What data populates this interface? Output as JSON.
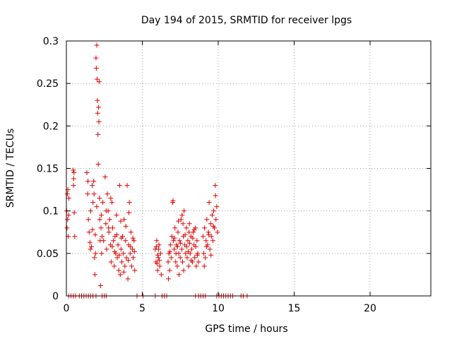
{
  "chart_data": {
    "type": "scatter",
    "title": "Day 194 of 2015, SRMTID for receiver lpgs",
    "xlabel": "GPS time / hours",
    "ylabel": "SRMTID / TECUs",
    "xlim": [
      0,
      24
    ],
    "ylim": [
      0,
      0.3
    ],
    "xticks": [
      0,
      5,
      10,
      15,
      20
    ],
    "yticks": [
      0,
      0.05,
      0.1,
      0.15,
      0.2,
      0.25,
      0.3
    ],
    "xtick_labels": [
      "0",
      "5",
      "10",
      "15",
      "20"
    ],
    "ytick_labels": [
      "0",
      "0.05",
      "0.1",
      "0.15",
      "0.2",
      "0.25",
      "0.3"
    ],
    "grid": true,
    "marker": "plus",
    "color": "#e00000",
    "series": [
      {
        "values": [
          [
            0.02,
            0.1
          ],
          [
            0.04,
            0.08
          ],
          [
            0.06,
            0.12
          ],
          [
            0.08,
            0.09
          ],
          [
            0.1,
            0.125
          ],
          [
            0.12,
            0.07
          ],
          [
            0.14,
            0.095
          ],
          [
            0.16,
            0.115
          ],
          [
            0.45,
            0.148
          ],
          [
            0.47,
            0.13
          ],
          [
            0.5,
            0.145
          ],
          [
            0.52,
            0.098
          ],
          [
            0.55,
            0.07
          ],
          [
            0.48,
            0.138
          ],
          [
            1.35,
            0.145
          ],
          [
            1.4,
            0.12
          ],
          [
            1.45,
            0.09
          ],
          [
            1.5,
            0.075
          ],
          [
            1.55,
            0.063
          ],
          [
            1.6,
            0.1
          ],
          [
            1.65,
            0.058
          ],
          [
            1.7,
            0.13
          ],
          [
            1.75,
            0.11
          ],
          [
            1.8,
            0.135
          ],
          [
            1.85,
            0.045
          ],
          [
            1.9,
            0.072
          ],
          [
            1.95,
            0.28
          ],
          [
            1.97,
            0.268
          ],
          [
            2.0,
            0.295
          ],
          [
            2.02,
            0.255
          ],
          [
            2.04,
            0.23
          ],
          [
            2.06,
            0.215
          ],
          [
            2.08,
            0.19
          ],
          [
            2.1,
            0.155
          ],
          [
            2.12,
            0.222
          ],
          [
            2.14,
            0.205
          ],
          [
            2.16,
            0.252
          ],
          [
            1.92,
            0.05
          ],
          [
            1.88,
            0.025
          ],
          [
            2.18,
            0.115
          ],
          [
            2.2,
            0.09
          ],
          [
            2.22,
            0.065
          ],
          [
            2.25,
            0.012
          ],
          [
            2.28,
            0.08
          ],
          [
            2.3,
            0.095
          ],
          [
            2.32,
            0.05
          ],
          [
            2.35,
            0.07
          ],
          [
            2.4,
            0.11
          ],
          [
            2.45,
            0.065
          ],
          [
            1.42,
            0.135
          ],
          [
            1.58,
            0.055
          ],
          [
            1.72,
            0.078
          ],
          [
            1.82,
            0.12
          ],
          [
            2.0,
            0.105
          ],
          [
            2.55,
            0.14
          ],
          [
            2.6,
            0.085
          ],
          [
            2.65,
            0.055
          ],
          [
            2.7,
            0.12
          ],
          [
            2.75,
            0.1
          ],
          [
            2.8,
            0.075
          ],
          [
            2.85,
            0.09
          ],
          [
            2.9,
            0.06
          ],
          [
            2.95,
            0.04
          ],
          [
            3.0,
            0.11
          ],
          [
            3.05,
            0.08
          ],
          [
            3.1,
            0.065
          ],
          [
            3.15,
            0.035
          ],
          [
            3.2,
            0.07
          ],
          [
            3.25,
            0.05
          ],
          [
            3.3,
            0.095
          ],
          [
            3.35,
            0.045
          ],
          [
            3.4,
            0.06
          ],
          [
            3.45,
            0.03
          ],
          [
            3.5,
            0.13
          ],
          [
            3.55,
            0.025
          ],
          [
            3.6,
            0.055
          ],
          [
            3.65,
            0.04
          ],
          [
            3.7,
            0.07
          ],
          [
            3.75,
            0.05
          ],
          [
            3.8,
            0.09
          ],
          [
            3.85,
            0.035
          ],
          [
            3.9,
            0.065
          ],
          [
            3.95,
            0.045
          ],
          [
            4.0,
            0.13
          ],
          [
            4.05,
            0.02
          ],
          [
            4.1,
            0.06
          ],
          [
            4.15,
            0.11
          ],
          [
            4.2,
            0.05
          ],
          [
            4.25,
            0.075
          ],
          [
            4.3,
            0.035
          ],
          [
            4.35,
            0.055
          ],
          [
            4.4,
            0.045
          ],
          [
            4.45,
            0.065
          ],
          [
            4.5,
            0.03
          ],
          [
            2.62,
            0.1
          ],
          [
            2.78,
            0.08
          ],
          [
            2.92,
            0.115
          ],
          [
            3.02,
            0.058
          ],
          [
            3.18,
            0.052
          ],
          [
            3.32,
            0.072
          ],
          [
            3.48,
            0.048
          ],
          [
            3.62,
            0.068
          ],
          [
            3.78,
            0.028
          ],
          [
            3.92,
            0.082
          ],
          [
            4.08,
            0.042
          ],
          [
            4.22,
            0.058
          ],
          [
            4.38,
            0.068
          ],
          [
            4.48,
            0.052
          ],
          [
            4.12,
            0.098
          ],
          [
            3.58,
            0.088
          ],
          [
            5.85,
            0.055
          ],
          [
            5.9,
            0.04
          ],
          [
            5.95,
            0.065
          ],
          [
            6.0,
            0.03
          ],
          [
            6.05,
            0.045
          ],
          [
            6.1,
            0.06
          ],
          [
            6.15,
            0.035
          ],
          [
            6.2,
            0.05
          ],
          [
            6.25,
            0.025
          ],
          [
            5.92,
            0.058
          ],
          [
            6.02,
            0.048
          ],
          [
            6.12,
            0.042
          ],
          [
            5.97,
            0.038
          ],
          [
            6.07,
            0.055
          ],
          [
            6.7,
            0.04
          ],
          [
            6.75,
            0.05
          ],
          [
            6.8,
            0.03
          ],
          [
            6.85,
            0.06
          ],
          [
            6.9,
            0.045
          ],
          [
            6.95,
            0.07
          ],
          [
            7.0,
            0.11
          ],
          [
            7.05,
            0.065
          ],
          [
            7.1,
            0.055
          ],
          [
            7.15,
            0.08
          ],
          [
            7.2,
            0.04
          ],
          [
            7.25,
            0.06
          ],
          [
            7.3,
            0.035
          ],
          [
            7.35,
            0.075
          ],
          [
            7.4,
            0.05
          ],
          [
            7.45,
            0.065
          ],
          [
            7.5,
            0.045
          ],
          [
            7.55,
            0.09
          ],
          [
            7.6,
            0.055
          ],
          [
            7.65,
            0.04
          ],
          [
            7.7,
            0.07
          ],
          [
            7.75,
            0.1
          ],
          [
            7.8,
            0.06
          ],
          [
            7.85,
            0.05
          ],
          [
            7.9,
            0.08
          ],
          [
            7.95,
            0.045
          ],
          [
            8.0,
            0.065
          ],
          [
            8.05,
            0.035
          ],
          [
            8.1,
            0.085
          ],
          [
            8.15,
            0.05
          ],
          [
            8.2,
            0.07
          ],
          [
            8.25,
            0.055
          ],
          [
            8.3,
            0.04
          ],
          [
            8.35,
            0.075
          ],
          [
            8.4,
            0.06
          ],
          [
            8.45,
            0.045
          ],
          [
            8.5,
            0.08
          ],
          [
            8.55,
            0.035
          ],
          [
            8.6,
            0.065
          ],
          [
            8.65,
            0.05
          ],
          [
            8.7,
            0.04
          ],
          [
            6.72,
            0.02
          ],
          [
            6.82,
            0.052
          ],
          [
            7.02,
            0.112
          ],
          [
            7.12,
            0.068
          ],
          [
            7.22,
            0.05
          ],
          [
            7.32,
            0.058
          ],
          [
            7.42,
            0.025
          ],
          [
            7.52,
            0.062
          ],
          [
            7.62,
            0.095
          ],
          [
            7.72,
            0.03
          ],
          [
            7.82,
            0.072
          ],
          [
            7.92,
            0.058
          ],
          [
            8.02,
            0.052
          ],
          [
            8.12,
            0.062
          ],
          [
            8.22,
            0.042
          ],
          [
            8.32,
            0.068
          ],
          [
            8.42,
            0.078
          ],
          [
            8.52,
            0.058
          ],
          [
            8.62,
            0.048
          ],
          [
            7.38,
            0.088
          ],
          [
            7.68,
            0.085
          ],
          [
            8.08,
            0.075
          ],
          [
            9.0,
            0.07
          ],
          [
            9.05,
            0.05
          ],
          [
            9.1,
            0.08
          ],
          [
            9.15,
            0.045
          ],
          [
            9.2,
            0.065
          ],
          [
            9.25,
            0.09
          ],
          [
            9.3,
            0.06
          ],
          [
            9.35,
            0.075
          ],
          [
            9.4,
            0.11
          ],
          [
            9.45,
            0.055
          ],
          [
            9.5,
            0.085
          ],
          [
            9.55,
            0.07
          ],
          [
            9.6,
            0.095
          ],
          [
            9.65,
            0.065
          ],
          [
            9.7,
            0.1
          ],
          [
            9.75,
            0.08
          ],
          [
            9.8,
            0.13
          ],
          [
            9.85,
            0.09
          ],
          [
            9.9,
            0.105
          ],
          [
            9.95,
            0.075
          ],
          [
            9.08,
            0.035
          ],
          [
            9.22,
            0.058
          ],
          [
            9.38,
            0.072
          ],
          [
            9.52,
            0.048
          ],
          [
            9.68,
            0.082
          ],
          [
            9.82,
            0.118
          ]
        ]
      },
      {
        "values": [
          [
            0.15,
            0
          ],
          [
            0.3,
            0
          ],
          [
            0.45,
            0
          ],
          [
            0.6,
            0
          ],
          [
            0.85,
            0
          ],
          [
            1.0,
            0
          ],
          [
            1.15,
            0
          ],
          [
            1.3,
            0
          ],
          [
            1.45,
            0
          ],
          [
            1.6,
            0
          ],
          [
            1.75,
            0
          ],
          [
            1.95,
            0
          ],
          [
            2.35,
            0
          ],
          [
            2.5,
            0
          ],
          [
            2.62,
            0
          ],
          [
            4.65,
            0
          ],
          [
            5.05,
            0
          ],
          [
            5.85,
            0
          ],
          [
            6.3,
            0
          ],
          [
            6.45,
            0
          ],
          [
            6.6,
            0
          ],
          [
            8.5,
            0
          ],
          [
            8.7,
            0
          ],
          [
            8.85,
            0
          ],
          [
            9.0,
            0
          ],
          [
            9.15,
            0
          ],
          [
            9.9,
            0
          ],
          [
            10.05,
            0
          ],
          [
            10.2,
            0
          ],
          [
            10.35,
            0
          ],
          [
            10.5,
            0
          ],
          [
            10.65,
            0
          ],
          [
            10.8,
            0
          ],
          [
            10.95,
            0
          ],
          [
            11.5,
            0
          ],
          [
            11.65,
            0
          ],
          [
            11.9,
            0
          ]
        ]
      }
    ]
  }
}
